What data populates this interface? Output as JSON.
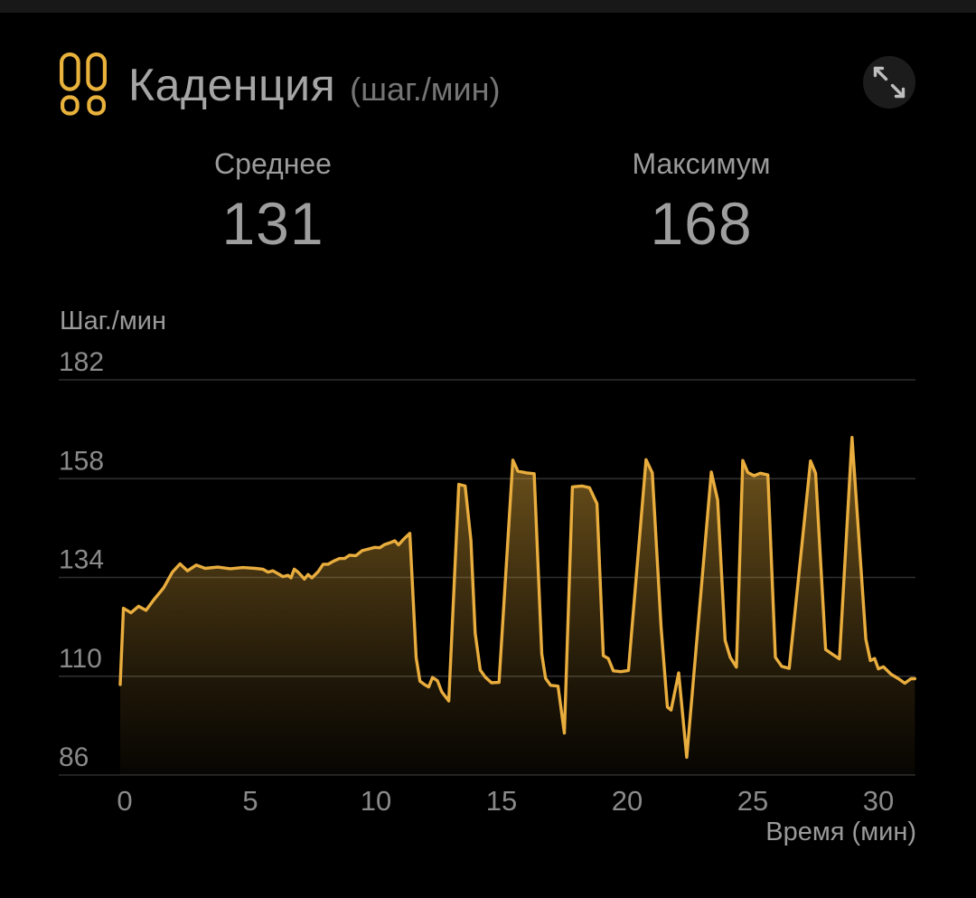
{
  "header": {
    "title": "Каденция",
    "unit": "(шаг./мин)"
  },
  "icons": {
    "header_icon": "footprints-icon",
    "expand_icon": "expand-arrows-icon"
  },
  "stats": {
    "average_label": "Среднее",
    "average_value": "131",
    "maximum_label": "Максимум",
    "maximum_value": "168"
  },
  "colors": {
    "background": "#000000",
    "accent_gold": "#E9AD3E",
    "fill_gold": "#E6AC3A",
    "gridline": "#2E2E2E",
    "text_primary": "#A5A5A5",
    "text_secondary": "#8A8A8A"
  },
  "chart_data": {
    "type": "area",
    "title": "Каденция (шаг./мин)",
    "ylabel": "Шаг./мин",
    "xlabel": "Время (мин)",
    "ylim": [
      86,
      182
    ],
    "xlim": [
      -0.2,
      31.5
    ],
    "y_ticks": [
      182,
      158,
      134,
      110,
      86
    ],
    "x_ticks": [
      0,
      5,
      10,
      15,
      20,
      25,
      30
    ],
    "grid": "horizontal",
    "legend": "none",
    "line_color": "#E9AD3E",
    "series": [
      {
        "name": "cadence_steps_per_min",
        "points": [
          [
            -0.18,
            108
          ],
          [
            -0.05,
            126.5
          ],
          [
            0.25,
            125.4
          ],
          [
            0.55,
            127
          ],
          [
            0.85,
            126
          ],
          [
            1.15,
            128.5
          ],
          [
            1.55,
            131.5
          ],
          [
            1.9,
            135.3
          ],
          [
            2.2,
            137.3
          ],
          [
            2.5,
            135.6
          ],
          [
            2.85,
            137
          ],
          [
            3.2,
            136.2
          ],
          [
            3.7,
            136.5
          ],
          [
            4.2,
            136.1
          ],
          [
            4.7,
            136.4
          ],
          [
            5.2,
            136.2
          ],
          [
            5.5,
            136
          ],
          [
            5.7,
            135.3
          ],
          [
            5.9,
            135.6
          ],
          [
            6.1,
            134.9
          ],
          [
            6.3,
            134.2
          ],
          [
            6.5,
            134.5
          ],
          [
            6.62,
            133.9
          ],
          [
            6.75,
            136
          ],
          [
            6.9,
            135.3
          ],
          [
            7.05,
            134.3
          ],
          [
            7.15,
            133.6
          ],
          [
            7.3,
            134.7
          ],
          [
            7.45,
            133.9
          ],
          [
            7.7,
            135.4
          ],
          [
            7.9,
            137.2
          ],
          [
            8.1,
            137.2
          ],
          [
            8.3,
            137.9
          ],
          [
            8.55,
            138.6
          ],
          [
            8.75,
            138.6
          ],
          [
            8.95,
            139.4
          ],
          [
            9.2,
            139.3
          ],
          [
            9.45,
            140.5
          ],
          [
            9.7,
            140.9
          ],
          [
            9.95,
            141.3
          ],
          [
            10.15,
            141.2
          ],
          [
            10.35,
            142
          ],
          [
            10.55,
            142.4
          ],
          [
            10.75,
            142.9
          ],
          [
            10.9,
            141.9
          ],
          [
            11.1,
            143.3
          ],
          [
            11.35,
            144.7
          ],
          [
            11.6,
            114.5
          ],
          [
            11.75,
            108.8
          ],
          [
            11.95,
            107.9
          ],
          [
            12.1,
            107.4
          ],
          [
            12.25,
            109.7
          ],
          [
            12.45,
            108.9
          ],
          [
            12.62,
            106.2
          ],
          [
            12.9,
            104
          ],
          [
            13.3,
            156.6
          ],
          [
            13.55,
            156.2
          ],
          [
            13.78,
            143
          ],
          [
            13.95,
            120.5
          ],
          [
            14.15,
            111.5
          ],
          [
            14.35,
            109.8
          ],
          [
            14.6,
            108.4
          ],
          [
            14.9,
            108.5
          ],
          [
            15.45,
            162.5
          ],
          [
            15.65,
            159.8
          ],
          [
            16.0,
            159.4
          ],
          [
            16.3,
            159.2
          ],
          [
            16.6,
            115.4
          ],
          [
            16.75,
            109.5
          ],
          [
            16.95,
            107.8
          ],
          [
            17.25,
            107.6
          ],
          [
            17.5,
            96.2
          ],
          [
            17.82,
            156
          ],
          [
            18.2,
            156.2
          ],
          [
            18.5,
            155.8
          ],
          [
            18.8,
            151.9
          ],
          [
            19.05,
            115
          ],
          [
            19.25,
            114.3
          ],
          [
            19.45,
            111.3
          ],
          [
            19.75,
            111.1
          ],
          [
            20.05,
            111.4
          ],
          [
            20.75,
            162.6
          ],
          [
            21.0,
            159.4
          ],
          [
            21.35,
            122
          ],
          [
            21.6,
            102.5
          ],
          [
            21.75,
            101.8
          ],
          [
            22.05,
            110.8
          ],
          [
            22.37,
            90.3
          ],
          [
            23.35,
            159.6
          ],
          [
            23.6,
            152.8
          ],
          [
            23.9,
            118.7
          ],
          [
            24.1,
            114.6
          ],
          [
            24.35,
            112.2
          ],
          [
            24.6,
            162.4
          ],
          [
            24.8,
            159.5
          ],
          [
            25.05,
            158.7
          ],
          [
            25.3,
            159.3
          ],
          [
            25.6,
            158.9
          ],
          [
            25.9,
            114.6
          ],
          [
            26.15,
            112.4
          ],
          [
            26.45,
            111.9
          ],
          [
            27.3,
            162.3
          ],
          [
            27.5,
            159.3
          ],
          [
            27.9,
            116.5
          ],
          [
            28.2,
            115.2
          ],
          [
            28.45,
            114.2
          ],
          [
            28.95,
            168
          ],
          [
            29.5,
            119
          ],
          [
            29.68,
            113.8
          ],
          [
            29.85,
            114.3
          ],
          [
            30.0,
            111.8
          ],
          [
            30.2,
            112.3
          ],
          [
            30.5,
            110.5
          ],
          [
            30.8,
            109.4
          ],
          [
            31.05,
            108.3
          ],
          [
            31.3,
            109.4
          ],
          [
            31.45,
            109.4
          ]
        ]
      }
    ]
  }
}
